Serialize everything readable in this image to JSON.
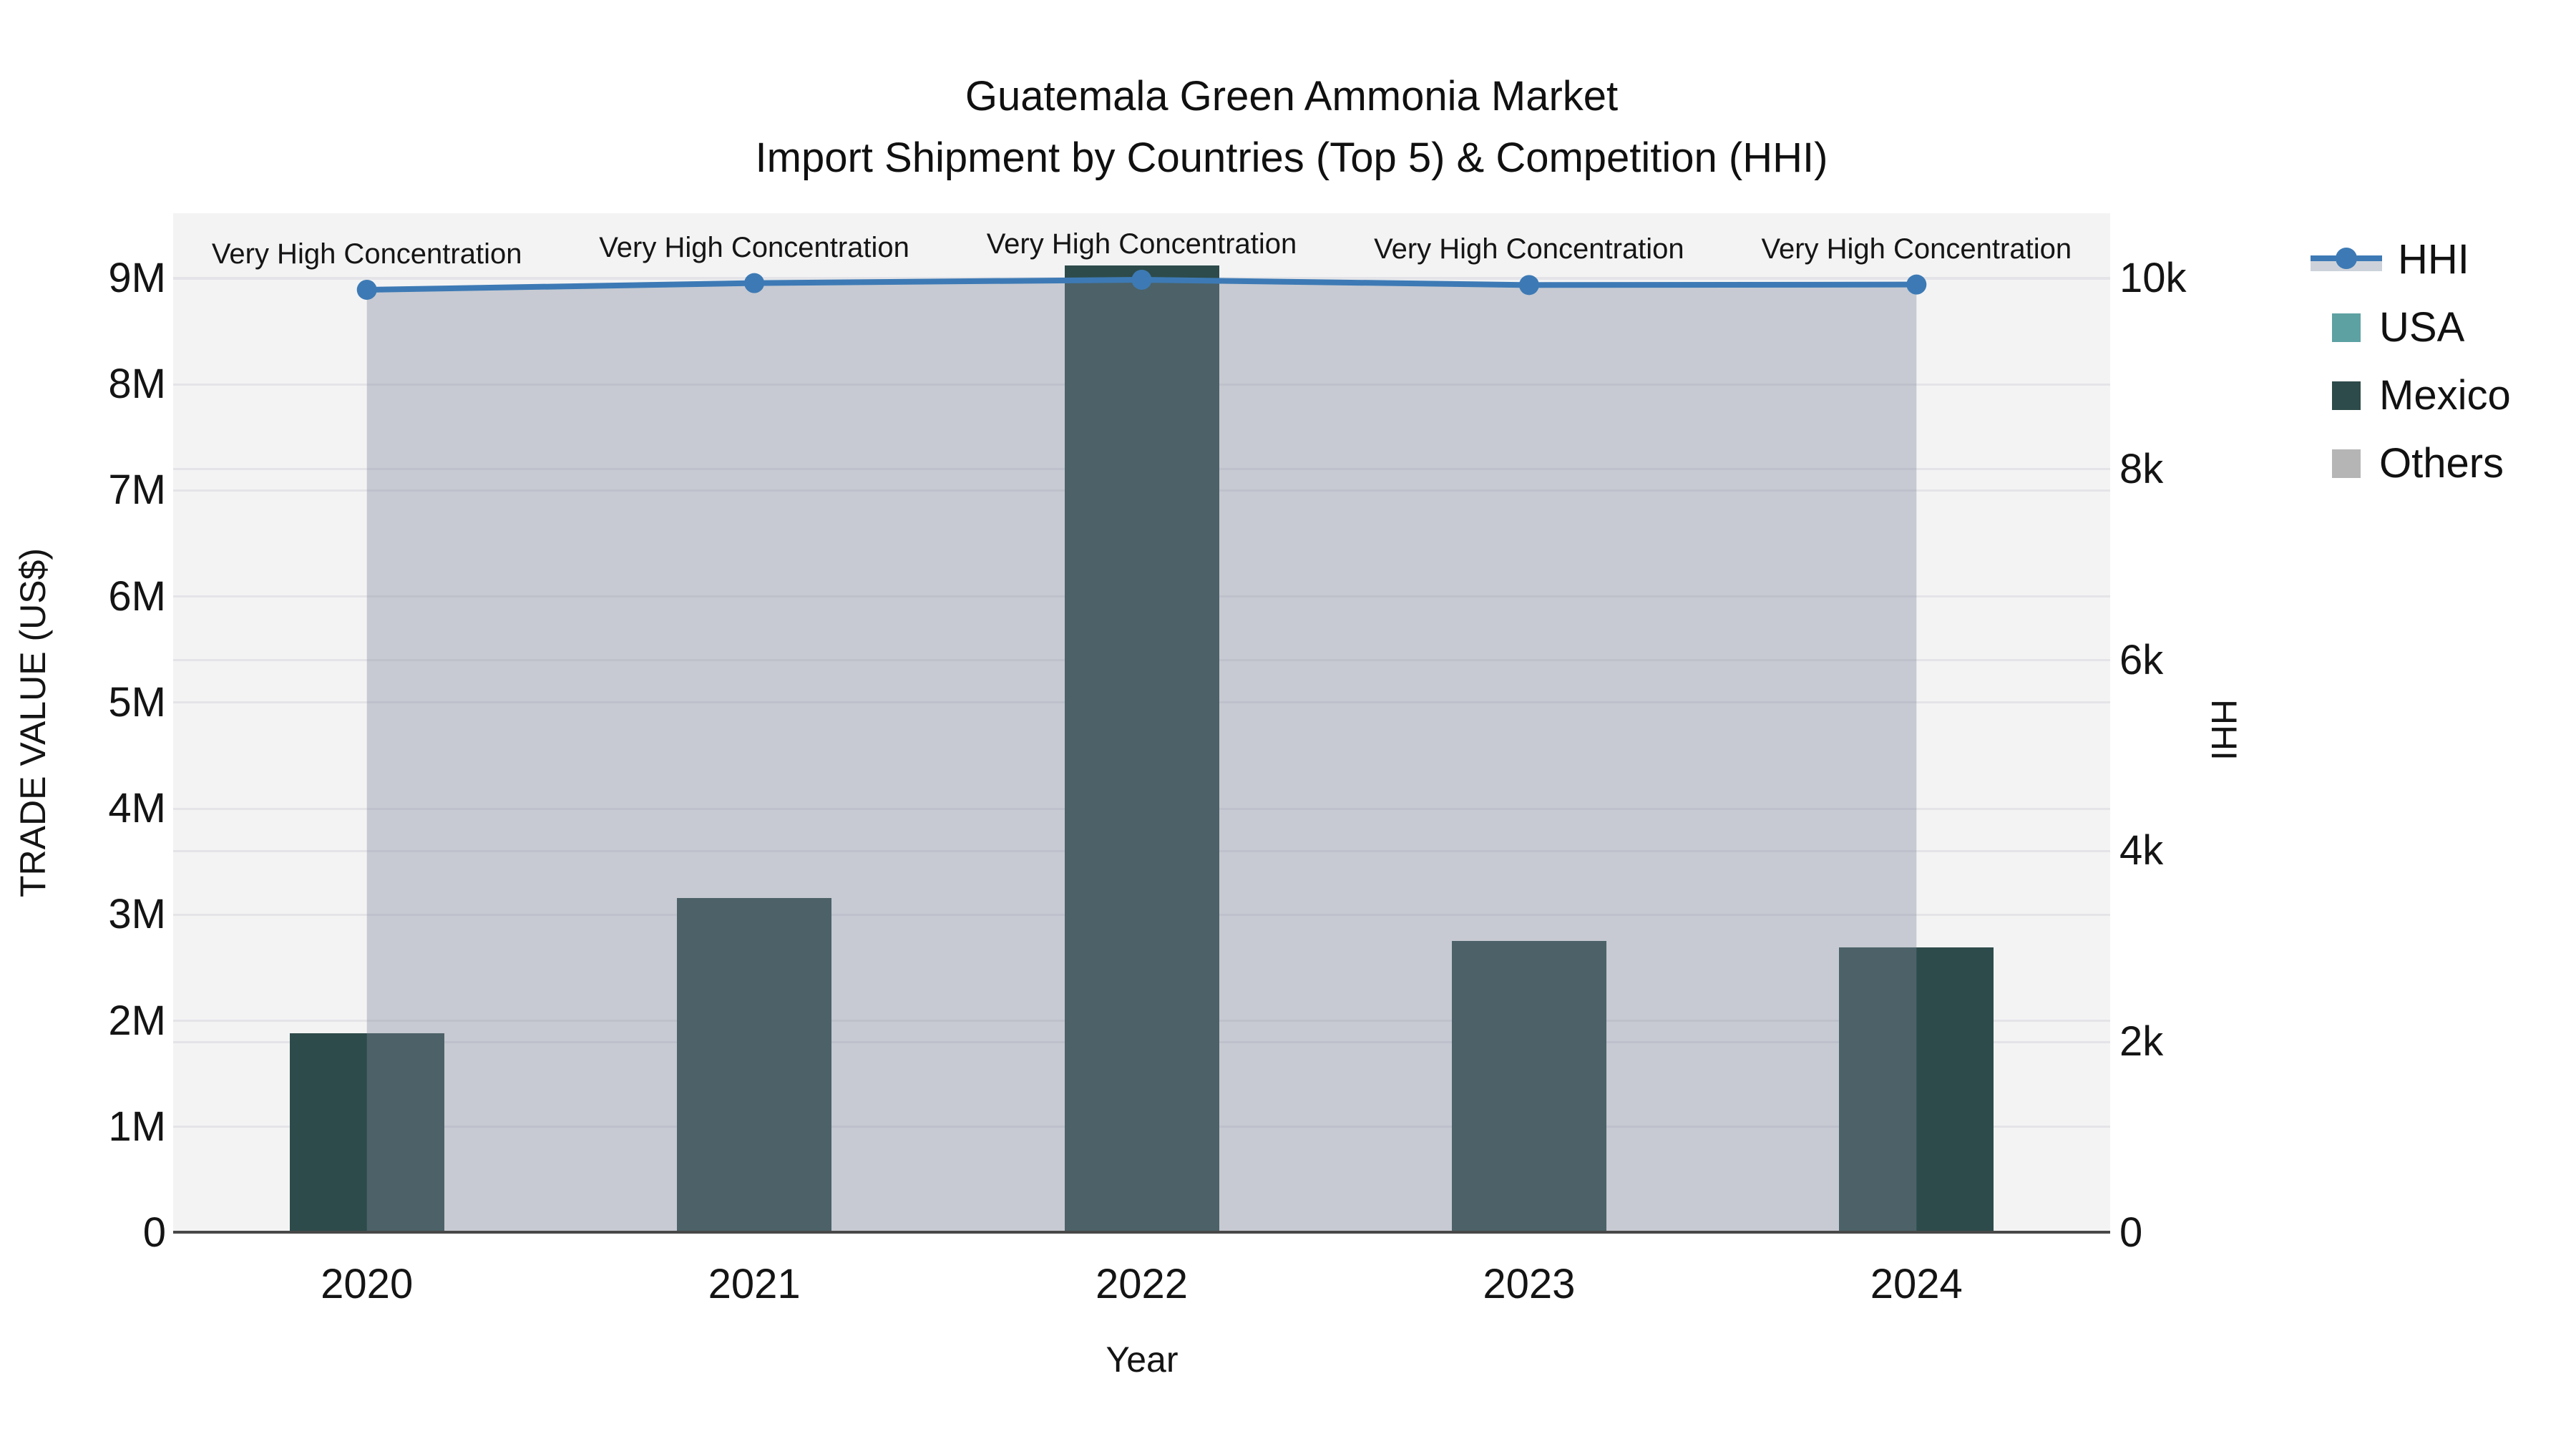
{
  "chart": {
    "title": "Guatemala Green Ammonia Market",
    "subtitle": "Import Shipment by Countries (Top 5) & Competition (HHI)",
    "x_axis": {
      "label": "Year"
    },
    "y_axis_left": {
      "label": "TRADE VALUE (US$)"
    },
    "y_axis_right": {
      "label": "HHI"
    },
    "annotation_text": "Very High Concentration"
  },
  "legend": {
    "items": [
      {
        "label": "HHI",
        "marker": "line-with-fill-sample",
        "color": "#3d7ab5",
        "fill_color": "#cdd2da"
      },
      {
        "label": "USA",
        "marker": "square",
        "color": "#5da1a3"
      },
      {
        "label": "Mexico",
        "marker": "square",
        "color": "#2d4b4a"
      },
      {
        "label": "Others",
        "marker": "square",
        "color": "#b5b5b5"
      }
    ]
  },
  "colors": {
    "plot_background": "#f3f3f4",
    "gridline": "#e4e4e8",
    "axis_line": "#484848",
    "hhi_line": "#3d7ab5",
    "area_fill": "rgba(128,138,156,0.38)",
    "text": "#141414"
  },
  "chart_data": {
    "type": "bar+line",
    "categories": [
      "2020",
      "2021",
      "2022",
      "2023",
      "2024"
    ],
    "series": [
      {
        "name": "USA",
        "type": "bar",
        "stacked": true,
        "color": "#5da1a3",
        "values": [
          0,
          0,
          0,
          0,
          0
        ]
      },
      {
        "name": "Mexico",
        "type": "bar",
        "stacked": true,
        "color": "#2d4b4a",
        "values": [
          1880000,
          3160000,
          9120000,
          2750000,
          2690000
        ]
      },
      {
        "name": "Others",
        "type": "bar",
        "stacked": true,
        "color": "#b5b5b5",
        "values": [
          0,
          0,
          0,
          0,
          0
        ]
      },
      {
        "name": "HHI",
        "type": "line",
        "y_axis": "right",
        "color": "#3d7ab5",
        "fill_to_zero": true,
        "values": [
          9880,
          9950,
          9985,
          9930,
          9935
        ]
      }
    ],
    "annotations": [
      {
        "x": "2020",
        "text": "Very High Concentration"
      },
      {
        "x": "2021",
        "text": "Very High Concentration"
      },
      {
        "x": "2022",
        "text": "Very High Concentration"
      },
      {
        "x": "2023",
        "text": "Very High Concentration"
      },
      {
        "x": "2024",
        "text": "Very High Concentration"
      }
    ],
    "title": "Guatemala Green Ammonia Market",
    "subtitle": "Import Shipment by Countries (Top 5) & Competition (HHI)",
    "xlabel": "Year",
    "ylabel_left": "TRADE VALUE (US$)",
    "ylabel_right": "HHI",
    "y_left_ticks": {
      "labels": [
        "0",
        "1M",
        "2M",
        "3M",
        "4M",
        "5M",
        "6M",
        "7M",
        "8M",
        "9M"
      ],
      "values": [
        0,
        1000000,
        2000000,
        3000000,
        4000000,
        5000000,
        6000000,
        7000000,
        8000000,
        9000000
      ]
    },
    "y_right_ticks": {
      "labels": [
        "0",
        "2k",
        "4k",
        "6k",
        "8k",
        "10k"
      ],
      "values": [
        0,
        2000,
        4000,
        6000,
        8000,
        10000
      ]
    },
    "ylim_left": [
      0,
      9614000
    ],
    "ylim_right": [
      0,
      10682
    ],
    "grid": true,
    "legend_position": "right"
  }
}
